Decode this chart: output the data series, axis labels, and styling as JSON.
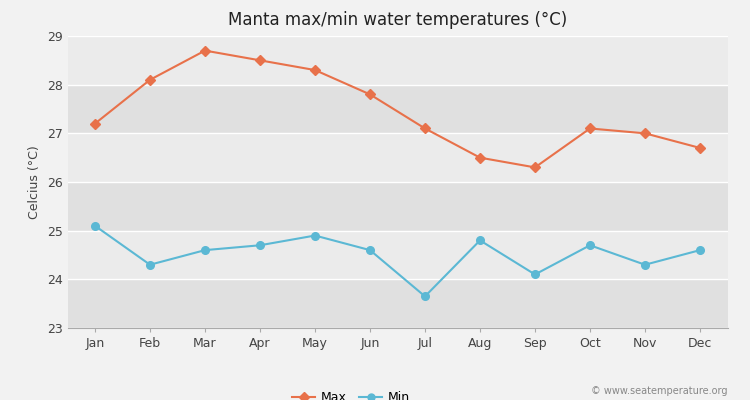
{
  "months": [
    "Jan",
    "Feb",
    "Mar",
    "Apr",
    "May",
    "Jun",
    "Jul",
    "Aug",
    "Sep",
    "Oct",
    "Nov",
    "Dec"
  ],
  "max_temps": [
    27.2,
    28.1,
    28.7,
    28.5,
    28.3,
    27.8,
    27.1,
    26.5,
    26.3,
    27.1,
    27.0,
    26.7
  ],
  "min_temps": [
    25.1,
    24.3,
    24.6,
    24.7,
    24.9,
    24.6,
    23.65,
    24.8,
    24.1,
    24.7,
    24.3,
    24.6
  ],
  "max_color": "#E8714A",
  "min_color": "#5bb8d4",
  "title": "Manta max/min water temperatures (°C)",
  "ylabel": "Celcius (°C)",
  "ylim": [
    23,
    29
  ],
  "yticks": [
    23,
    24,
    25,
    26,
    27,
    28,
    29
  ],
  "bg_color": "#f2f2f2",
  "plot_bg_color": "#e8e8e8",
  "band_color_light": "#ebebeb",
  "band_color_dark": "#e0e0e0",
  "grid_color": "#ffffff",
  "watermark": "© www.seatemperature.org"
}
